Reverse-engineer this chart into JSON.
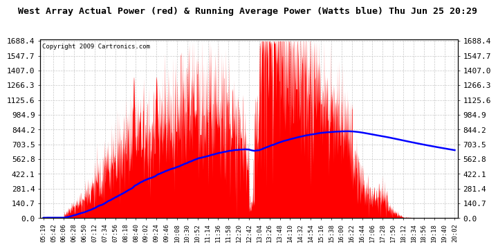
{
  "title": "West Array Actual Power (red) & Running Average Power (Watts blue) Thu Jun 25 20:29",
  "copyright": "Copyright 2009 Cartronics.com",
  "y_ticks": [
    0.0,
    140.7,
    281.4,
    422.1,
    562.8,
    703.5,
    844.2,
    984.9,
    1125.6,
    1266.3,
    1407.0,
    1547.7,
    1688.4
  ],
  "x_labels": [
    "05:19",
    "05:42",
    "06:06",
    "06:28",
    "06:50",
    "07:12",
    "07:34",
    "07:56",
    "08:18",
    "08:40",
    "09:02",
    "09:24",
    "09:46",
    "10:08",
    "10:30",
    "10:52",
    "11:14",
    "11:36",
    "11:58",
    "12:20",
    "12:42",
    "13:04",
    "13:26",
    "13:48",
    "14:10",
    "14:32",
    "14:54",
    "15:16",
    "15:38",
    "16:00",
    "16:22",
    "16:44",
    "17:06",
    "17:28",
    "17:50",
    "18:12",
    "18:34",
    "18:56",
    "19:18",
    "19:40",
    "20:02"
  ],
  "red_color": "#ff0000",
  "blue_color": "#0000ff",
  "grid_color": "#c8c8c8",
  "bg_color": "#ffffff",
  "title_fontsize": 9.5,
  "copyright_fontsize": 6.5,
  "ytick_fontsize": 8.0,
  "xtick_fontsize": 6.5
}
